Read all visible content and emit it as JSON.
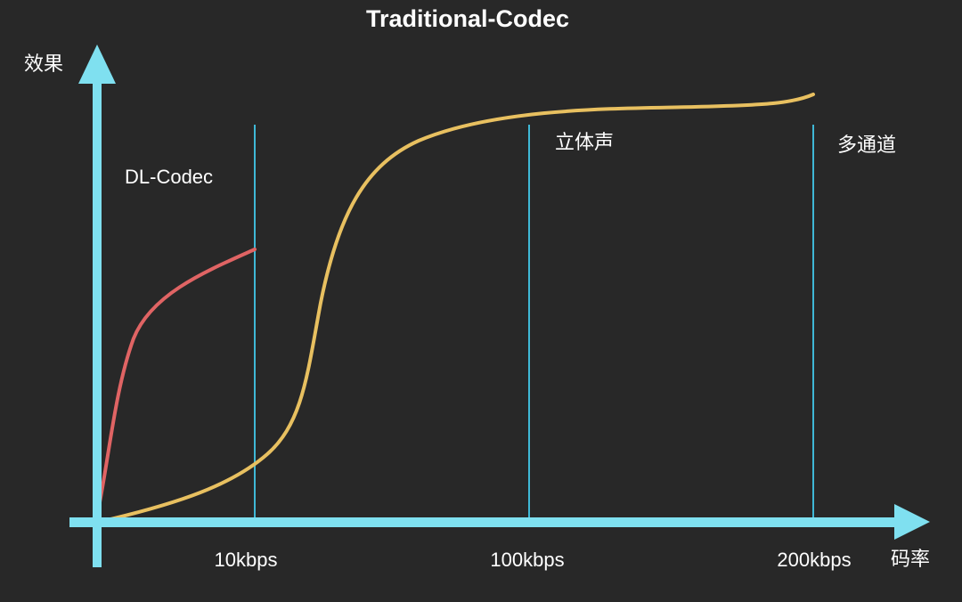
{
  "title": "Traditional-Codec",
  "axes": {
    "y_label": "效果",
    "x_label": "码率",
    "x_ticks": [
      "10kbps",
      "100kbps",
      "200kbps"
    ]
  },
  "regions": {
    "dl_codec": "DL-Codec",
    "stereo": "立体声",
    "multichannel": "多通道"
  },
  "colors": {
    "background": "#282828",
    "axis": "#7fe0f0",
    "divider": "#3fb8d6",
    "traditional_curve": "#e8c060",
    "dl_curve": "#e06464"
  }
}
